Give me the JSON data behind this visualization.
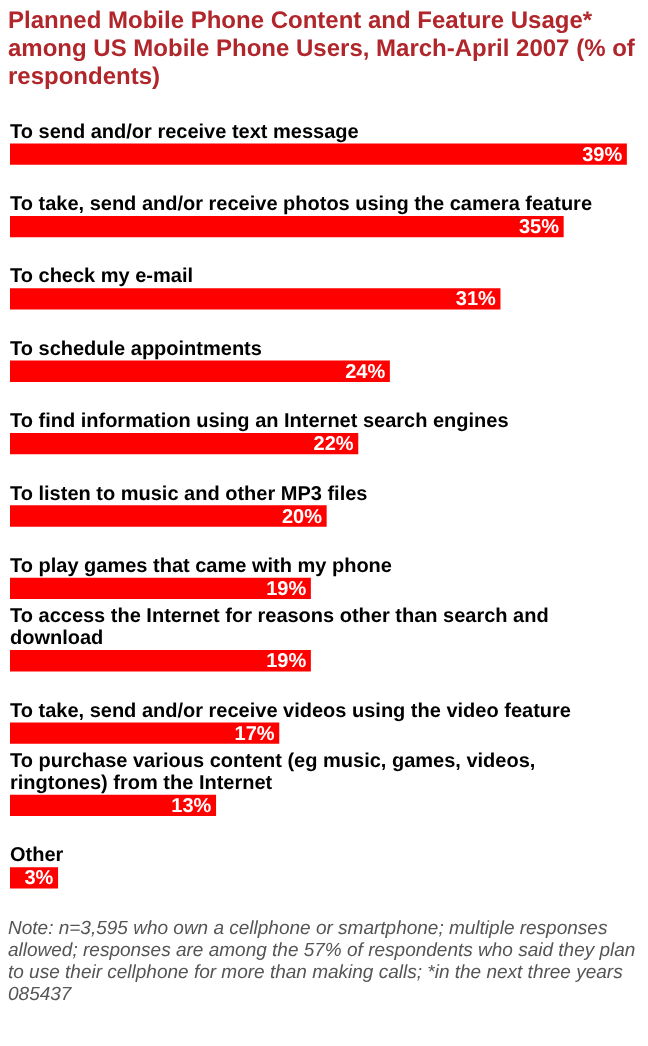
{
  "chart_data": {
    "type": "bar",
    "orientation": "horizontal",
    "title": "Planned Mobile Phone Content and Feature Usage* among US Mobile Phone Users, March-April 2007 (% of respondents)",
    "categories": [
      "To send and/or receive text message",
      "To take, send and/or receive photos using the camera feature",
      "To check my e-mail",
      "To schedule appointments",
      "To find information using an Internet search engines",
      "To listen to music and other MP3 files",
      "To play games that came with my phone",
      "To access the Internet for reasons other than search and download",
      "To take, send and/or receive videos using the video feature",
      "To purchase various content (eg music, games, videos, ringtones) from the Internet",
      "Other"
    ],
    "values": [
      39,
      35,
      31,
      24,
      22,
      20,
      19,
      19,
      17,
      13,
      3
    ],
    "value_labels": [
      "39%",
      "35%",
      "31%",
      "24%",
      "22%",
      "20%",
      "19%",
      "19%",
      "17%",
      "13%",
      "3%"
    ],
    "color": "#ff0000",
    "annotations": [
      "Note: n=3,595 who own a cellphone or smartphone; multiple responses allowed; responses are among the 57% of respondents who said they plan to use their cellphone for more than making calls; *in the next three years",
      "085437"
    ]
  }
}
